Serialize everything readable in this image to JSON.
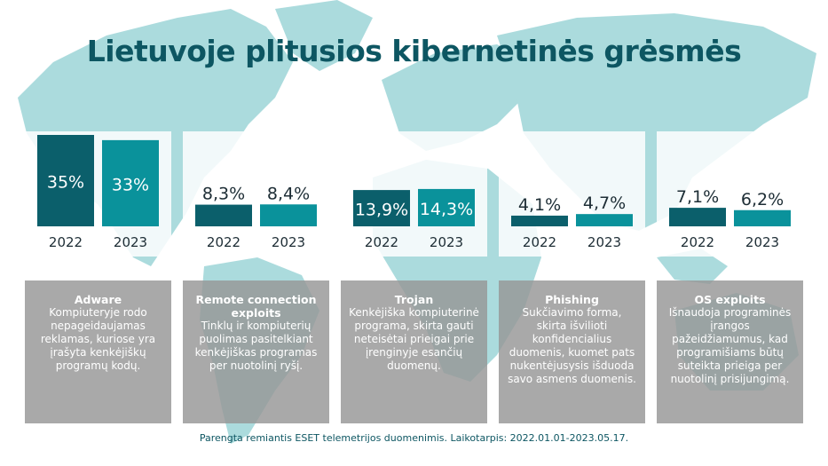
{
  "title": "Lietuvoje plitusios kibernetinės grėsmės",
  "colors": {
    "bar_2022": "#0b5f6b",
    "bar_2023": "#0a929b",
    "title": "#0d5662",
    "map": "#8fcfd2",
    "card": "#969696"
  },
  "chart_data": [
    {
      "type": "bar",
      "categories": [
        "2022",
        "2023"
      ],
      "values": [
        35,
        33
      ],
      "labels": [
        "35%",
        "33%"
      ],
      "ylim": [
        0,
        35
      ]
    },
    {
      "type": "bar",
      "categories": [
        "2022",
        "2023"
      ],
      "values": [
        8.3,
        8.4
      ],
      "labels": [
        "8,3%",
        "8,4%"
      ],
      "ylim": [
        0,
        35
      ]
    },
    {
      "type": "bar",
      "categories": [
        "2022",
        "2023"
      ],
      "values": [
        13.9,
        14.3
      ],
      "labels": [
        "13,9%",
        "14,3%"
      ],
      "ylim": [
        0,
        35
      ]
    },
    {
      "type": "bar",
      "categories": [
        "2022",
        "2023"
      ],
      "values": [
        4.1,
        4.7
      ],
      "labels": [
        "4,1%",
        "4,7%"
      ],
      "ylim": [
        0,
        35
      ]
    },
    {
      "type": "bar",
      "categories": [
        "2022",
        "2023"
      ],
      "values": [
        7.1,
        6.2
      ],
      "labels": [
        "7,1%",
        "6,2%"
      ],
      "ylim": [
        0,
        35
      ]
    }
  ],
  "threats": [
    {
      "name": "Adware",
      "description": "Kompiuteryje rodo nepageidaujamas reklamas, kuriose yra įrašyta kenkėjiškų programų kodų."
    },
    {
      "name": "Remote connection exploits",
      "description": "Tinklų ir kompiuterių puolimas pasitelkiant kenkėjiškas programas per nuotolinį ryšį."
    },
    {
      "name": "Trojan",
      "description": "Kenkėjiška kompiuterinė programa, skirta gauti neteisėtai prieigai prie įrenginyje esančių duomenų."
    },
    {
      "name": "Phishing",
      "description": "Sukčiavimo forma, skirta išvilioti konfidencialius duomenis, kuomet pats nukentėjusysis išduoda savo asmens duomenis."
    },
    {
      "name": "OS exploits",
      "description": "Išnaudoja programinės įrangos pažeidžiamumus, kad programišiams būtų suteikta prieiga per nuotolinį prisijungimą."
    }
  ],
  "footer": "Parengta remiantis ESET telemetrijos duomenimis. Laikotarpis: 2022.01.01-2023.05.17."
}
